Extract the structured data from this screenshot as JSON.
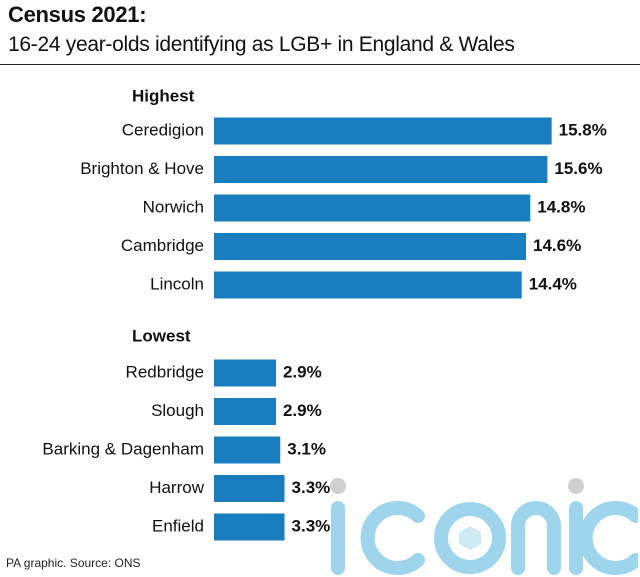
{
  "title": "Census 2021:",
  "subtitle": "16-24 year-olds identifying as LGB+ in England & Wales",
  "footer": "PA graphic. Source: ONS",
  "watermark": "iconic",
  "bar_color": "#1a7dc0",
  "chart_data": {
    "type": "bar",
    "orientation": "horizontal",
    "value_suffix": "%",
    "groups": [
      {
        "name": "Highest",
        "categories": [
          "Ceredigion",
          "Brighton & Hove",
          "Norwich",
          "Cambridge",
          "Lincoln"
        ],
        "values": [
          15.8,
          15.6,
          14.8,
          14.6,
          14.4
        ]
      },
      {
        "name": "Lowest",
        "categories": [
          "Redbridge",
          "Slough",
          "Barking & Dagenham",
          "Harrow",
          "Enfield"
        ],
        "values": [
          2.9,
          2.9,
          3.1,
          3.3,
          3.3
        ]
      }
    ]
  }
}
